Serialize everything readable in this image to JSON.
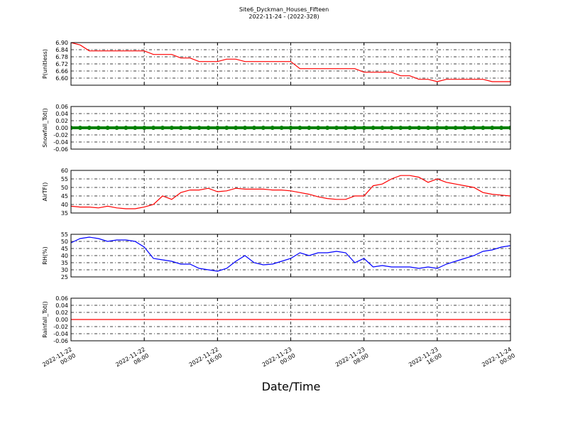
{
  "title": "Site6_Dyckman_Houses_Fifteen",
  "subtitle": "2022-11-24 - (2022-328)",
  "x_axis": {
    "label": "Date/Time",
    "xlim": [
      "2022-11-22 00:00",
      "2022-11-24 00:00"
    ],
    "xticks": [
      "2022-11-22 00:00",
      "2022-11-22 08:00",
      "2022-11-22 16:00",
      "2022-11-23 00:00",
      "2022-11-23 08:00",
      "2022-11-23 16:00",
      "2022-11-24 00:00"
    ]
  },
  "chart_data": [
    {
      "type": "line",
      "ylabel": "P(unitless)",
      "color": "#ff0000",
      "grid": true,
      "x": [
        "2022-11-22 00:00",
        "2022-11-22 01:00",
        "2022-11-22 02:00",
        "2022-11-22 03:00",
        "2022-11-22 04:00",
        "2022-11-22 05:00",
        "2022-11-22 06:00",
        "2022-11-22 07:00",
        "2022-11-22 08:00",
        "2022-11-22 09:00",
        "2022-11-22 10:00",
        "2022-11-22 11:00",
        "2022-11-22 12:00",
        "2022-11-22 13:00",
        "2022-11-22 14:00",
        "2022-11-22 15:00",
        "2022-11-22 16:00",
        "2022-11-22 17:00",
        "2022-11-22 18:00",
        "2022-11-22 19:00",
        "2022-11-22 20:00",
        "2022-11-22 21:00",
        "2022-11-22 22:00",
        "2022-11-22 23:00",
        "2022-11-23 00:00",
        "2022-11-23 01:00",
        "2022-11-23 02:00",
        "2022-11-23 03:00",
        "2022-11-23 04:00",
        "2022-11-23 05:00",
        "2022-11-23 06:00",
        "2022-11-23 07:00",
        "2022-11-23 08:00",
        "2022-11-23 09:00",
        "2022-11-23 10:00",
        "2022-11-23 11:00",
        "2022-11-23 12:00",
        "2022-11-23 13:00",
        "2022-11-23 14:00",
        "2022-11-23 15:00",
        "2022-11-23 16:00",
        "2022-11-23 17:00",
        "2022-11-23 18:00",
        "2022-11-23 19:00",
        "2022-11-23 20:00",
        "2022-11-23 21:00",
        "2022-11-23 22:00",
        "2022-11-23 23:00",
        "2022-11-24 00:00"
      ],
      "values": [
        6.9,
        6.88,
        6.83,
        6.83,
        6.83,
        6.83,
        6.83,
        6.83,
        6.83,
        6.8,
        6.8,
        6.8,
        6.77,
        6.77,
        6.74,
        6.74,
        6.74,
        6.76,
        6.76,
        6.74,
        6.74,
        6.74,
        6.74,
        6.74,
        6.74,
        6.68,
        6.68,
        6.68,
        6.68,
        6.68,
        6.68,
        6.68,
        6.65,
        6.65,
        6.65,
        6.65,
        6.62,
        6.62,
        6.59,
        6.59,
        6.57,
        6.59,
        6.59,
        6.59,
        6.59,
        6.59,
        6.57,
        6.57,
        6.57
      ],
      "ylim": [
        6.54,
        6.9
      ],
      "yticks": [
        {
          "value": 6.6,
          "label": "6.60"
        },
        {
          "value": 6.66,
          "label": "6.66"
        },
        {
          "value": 6.72,
          "label": "6.72"
        },
        {
          "value": 6.78,
          "label": "6.78"
        },
        {
          "value": 6.84,
          "label": "6.84"
        },
        {
          "value": 6.9,
          "label": "6.90"
        }
      ]
    },
    {
      "type": "scatter",
      "ylabel": "Snowfall_Tot()",
      "color": "#008000",
      "grid": true,
      "x": [
        "2022-11-22 00:00",
        "2022-11-22 01:00",
        "2022-11-22 02:00",
        "2022-11-22 03:00",
        "2022-11-22 04:00",
        "2022-11-22 05:00",
        "2022-11-22 06:00",
        "2022-11-22 07:00",
        "2022-11-22 08:00",
        "2022-11-22 09:00",
        "2022-11-22 10:00",
        "2022-11-22 11:00",
        "2022-11-22 12:00",
        "2022-11-22 13:00",
        "2022-11-22 14:00",
        "2022-11-22 15:00",
        "2022-11-22 16:00",
        "2022-11-22 17:00",
        "2022-11-22 18:00",
        "2022-11-22 19:00",
        "2022-11-22 20:00",
        "2022-11-22 21:00",
        "2022-11-22 22:00",
        "2022-11-22 23:00",
        "2022-11-23 00:00",
        "2022-11-23 01:00",
        "2022-11-23 02:00",
        "2022-11-23 03:00",
        "2022-11-23 04:00",
        "2022-11-23 05:00",
        "2022-11-23 06:00",
        "2022-11-23 07:00",
        "2022-11-23 08:00",
        "2022-11-23 09:00",
        "2022-11-23 10:00",
        "2022-11-23 11:00",
        "2022-11-23 12:00",
        "2022-11-23 13:00",
        "2022-11-23 14:00",
        "2022-11-23 15:00",
        "2022-11-23 16:00",
        "2022-11-23 17:00",
        "2022-11-23 18:00",
        "2022-11-23 19:00",
        "2022-11-23 20:00",
        "2022-11-23 21:00",
        "2022-11-23 22:00",
        "2022-11-23 23:00",
        "2022-11-24 00:00"
      ],
      "values": [
        0,
        0,
        0,
        0,
        0,
        0,
        0,
        0,
        0,
        0,
        0,
        0,
        0,
        0,
        0,
        0,
        0,
        0,
        0,
        0,
        0,
        0,
        0,
        0,
        0,
        0,
        0,
        0,
        0,
        0,
        0,
        0,
        0,
        0,
        0,
        0,
        0,
        0,
        0,
        0,
        0,
        0,
        0,
        0,
        0,
        0,
        0,
        0,
        0
      ],
      "ylim": [
        -0.06,
        0.06
      ],
      "yticks": [
        {
          "value": -0.06,
          "label": "-0.06"
        },
        {
          "value": -0.04,
          "label": "-0.04"
        },
        {
          "value": -0.02,
          "label": "-0.02"
        },
        {
          "value": 0,
          "label": "0.00"
        },
        {
          "value": 0.02,
          "label": "0.02"
        },
        {
          "value": 0.04,
          "label": "0.04"
        },
        {
          "value": 0.06,
          "label": "0.06"
        }
      ]
    },
    {
      "type": "line",
      "ylabel": "AirTF()",
      "color": "#ff0000",
      "grid": true,
      "x": [
        "2022-11-22 00:00",
        "2022-11-22 01:00",
        "2022-11-22 02:00",
        "2022-11-22 03:00",
        "2022-11-22 04:00",
        "2022-11-22 05:00",
        "2022-11-22 06:00",
        "2022-11-22 07:00",
        "2022-11-22 08:00",
        "2022-11-22 09:00",
        "2022-11-22 10:00",
        "2022-11-22 11:00",
        "2022-11-22 12:00",
        "2022-11-22 13:00",
        "2022-11-22 14:00",
        "2022-11-22 15:00",
        "2022-11-22 16:00",
        "2022-11-22 17:00",
        "2022-11-22 18:00",
        "2022-11-22 19:00",
        "2022-11-22 20:00",
        "2022-11-22 21:00",
        "2022-11-22 22:00",
        "2022-11-22 23:00",
        "2022-11-23 00:00",
        "2022-11-23 01:00",
        "2022-11-23 02:00",
        "2022-11-23 03:00",
        "2022-11-23 04:00",
        "2022-11-23 05:00",
        "2022-11-23 06:00",
        "2022-11-23 07:00",
        "2022-11-23 08:00",
        "2022-11-23 09:00",
        "2022-11-23 10:00",
        "2022-11-23 11:00",
        "2022-11-23 12:00",
        "2022-11-23 13:00",
        "2022-11-23 14:00",
        "2022-11-23 15:00",
        "2022-11-23 16:00",
        "2022-11-23 17:00",
        "2022-11-23 18:00",
        "2022-11-23 19:00",
        "2022-11-23 20:00",
        "2022-11-23 21:00",
        "2022-11-23 22:00",
        "2022-11-23 23:00",
        "2022-11-24 00:00"
      ],
      "values": [
        39,
        38.5,
        38.5,
        38,
        39,
        38,
        37.5,
        37.5,
        38.5,
        40,
        45,
        43,
        47,
        48.5,
        48.5,
        49.5,
        47.5,
        48,
        49.5,
        49,
        49,
        49,
        48.5,
        48.5,
        48,
        47,
        46,
        44.5,
        43.5,
        43,
        43,
        45,
        45,
        51,
        52,
        55,
        57,
        57,
        56,
        53,
        55,
        53,
        52,
        51,
        50,
        47,
        46,
        45.5,
        45
      ],
      "ylim": [
        35,
        60
      ],
      "yticks": [
        35,
        40,
        45,
        50,
        55,
        60
      ]
    },
    {
      "type": "line",
      "ylabel": "RH(%)",
      "color": "#0000ff",
      "grid": true,
      "x": [
        "2022-11-22 00:00",
        "2022-11-22 01:00",
        "2022-11-22 02:00",
        "2022-11-22 03:00",
        "2022-11-22 04:00",
        "2022-11-22 05:00",
        "2022-11-22 06:00",
        "2022-11-22 07:00",
        "2022-11-22 08:00",
        "2022-11-22 09:00",
        "2022-11-22 10:00",
        "2022-11-22 11:00",
        "2022-11-22 12:00",
        "2022-11-22 13:00",
        "2022-11-22 14:00",
        "2022-11-22 15:00",
        "2022-11-22 16:00",
        "2022-11-22 17:00",
        "2022-11-22 18:00",
        "2022-11-22 19:00",
        "2022-11-22 20:00",
        "2022-11-22 21:00",
        "2022-11-22 22:00",
        "2022-11-22 23:00",
        "2022-11-23 00:00",
        "2022-11-23 01:00",
        "2022-11-23 02:00",
        "2022-11-23 03:00",
        "2022-11-23 04:00",
        "2022-11-23 05:00",
        "2022-11-23 06:00",
        "2022-11-23 07:00",
        "2022-11-23 08:00",
        "2022-11-23 09:00",
        "2022-11-23 10:00",
        "2022-11-23 11:00",
        "2022-11-23 12:00",
        "2022-11-23 13:00",
        "2022-11-23 14:00",
        "2022-11-23 15:00",
        "2022-11-23 16:00",
        "2022-11-23 17:00",
        "2022-11-23 18:00",
        "2022-11-23 19:00",
        "2022-11-23 20:00",
        "2022-11-23 21:00",
        "2022-11-23 22:00",
        "2022-11-23 23:00",
        "2022-11-24 00:00"
      ],
      "values": [
        49,
        52,
        53,
        52,
        50,
        51,
        51,
        50,
        46,
        38,
        37,
        36,
        34,
        34,
        31,
        30,
        29,
        31,
        36,
        40,
        35,
        33.5,
        34,
        36,
        38,
        42,
        40,
        42,
        42,
        43,
        42,
        35,
        38,
        32,
        33,
        32,
        32,
        32,
        31,
        32,
        31,
        34,
        36,
        38,
        40,
        43,
        44,
        46,
        47
      ],
      "ylim": [
        25,
        55
      ],
      "yticks": [
        25,
        30,
        35,
        40,
        45,
        50,
        55
      ]
    },
    {
      "type": "line",
      "ylabel": "Rainfall_Tot()",
      "color": "#ff0000",
      "grid": true,
      "x": [
        "2022-11-22 00:00",
        "2022-11-22 01:00",
        "2022-11-22 02:00",
        "2022-11-22 03:00",
        "2022-11-22 04:00",
        "2022-11-22 05:00",
        "2022-11-22 06:00",
        "2022-11-22 07:00",
        "2022-11-22 08:00",
        "2022-11-22 09:00",
        "2022-11-22 10:00",
        "2022-11-22 11:00",
        "2022-11-22 12:00",
        "2022-11-22 13:00",
        "2022-11-22 14:00",
        "2022-11-22 15:00",
        "2022-11-22 16:00",
        "2022-11-22 17:00",
        "2022-11-22 18:00",
        "2022-11-22 19:00",
        "2022-11-22 20:00",
        "2022-11-22 21:00",
        "2022-11-22 22:00",
        "2022-11-22 23:00",
        "2022-11-23 00:00",
        "2022-11-23 01:00",
        "2022-11-23 02:00",
        "2022-11-23 03:00",
        "2022-11-23 04:00",
        "2022-11-23 05:00",
        "2022-11-23 06:00",
        "2022-11-23 07:00",
        "2022-11-23 08:00",
        "2022-11-23 09:00",
        "2022-11-23 10:00",
        "2022-11-23 11:00",
        "2022-11-23 12:00",
        "2022-11-23 13:00",
        "2022-11-23 14:00",
        "2022-11-23 15:00",
        "2022-11-23 16:00",
        "2022-11-23 17:00",
        "2022-11-23 18:00",
        "2022-11-23 19:00",
        "2022-11-23 20:00",
        "2022-11-23 21:00",
        "2022-11-23 22:00",
        "2022-11-23 23:00",
        "2022-11-24 00:00"
      ],
      "values": [
        0,
        0,
        0,
        0,
        0,
        0,
        0,
        0,
        0,
        0,
        0,
        0,
        0,
        0,
        0,
        0,
        0,
        0,
        0,
        0,
        0,
        0,
        0,
        0,
        0,
        0,
        0,
        0,
        0,
        0,
        0,
        0,
        0,
        0,
        0,
        0,
        0,
        0,
        0,
        0,
        0,
        0,
        0,
        0,
        0,
        0,
        0,
        0,
        0
      ],
      "ylim": [
        -0.06,
        0.06
      ],
      "yticks": [
        {
          "value": -0.06,
          "label": "-0.06"
        },
        {
          "value": -0.04,
          "label": "-0.04"
        },
        {
          "value": -0.02,
          "label": "-0.02"
        },
        {
          "value": 0,
          "label": "0.00"
        },
        {
          "value": 0.02,
          "label": "0.02"
        },
        {
          "value": 0.04,
          "label": "0.04"
        },
        {
          "value": 0.06,
          "label": "0.06"
        }
      ]
    }
  ]
}
